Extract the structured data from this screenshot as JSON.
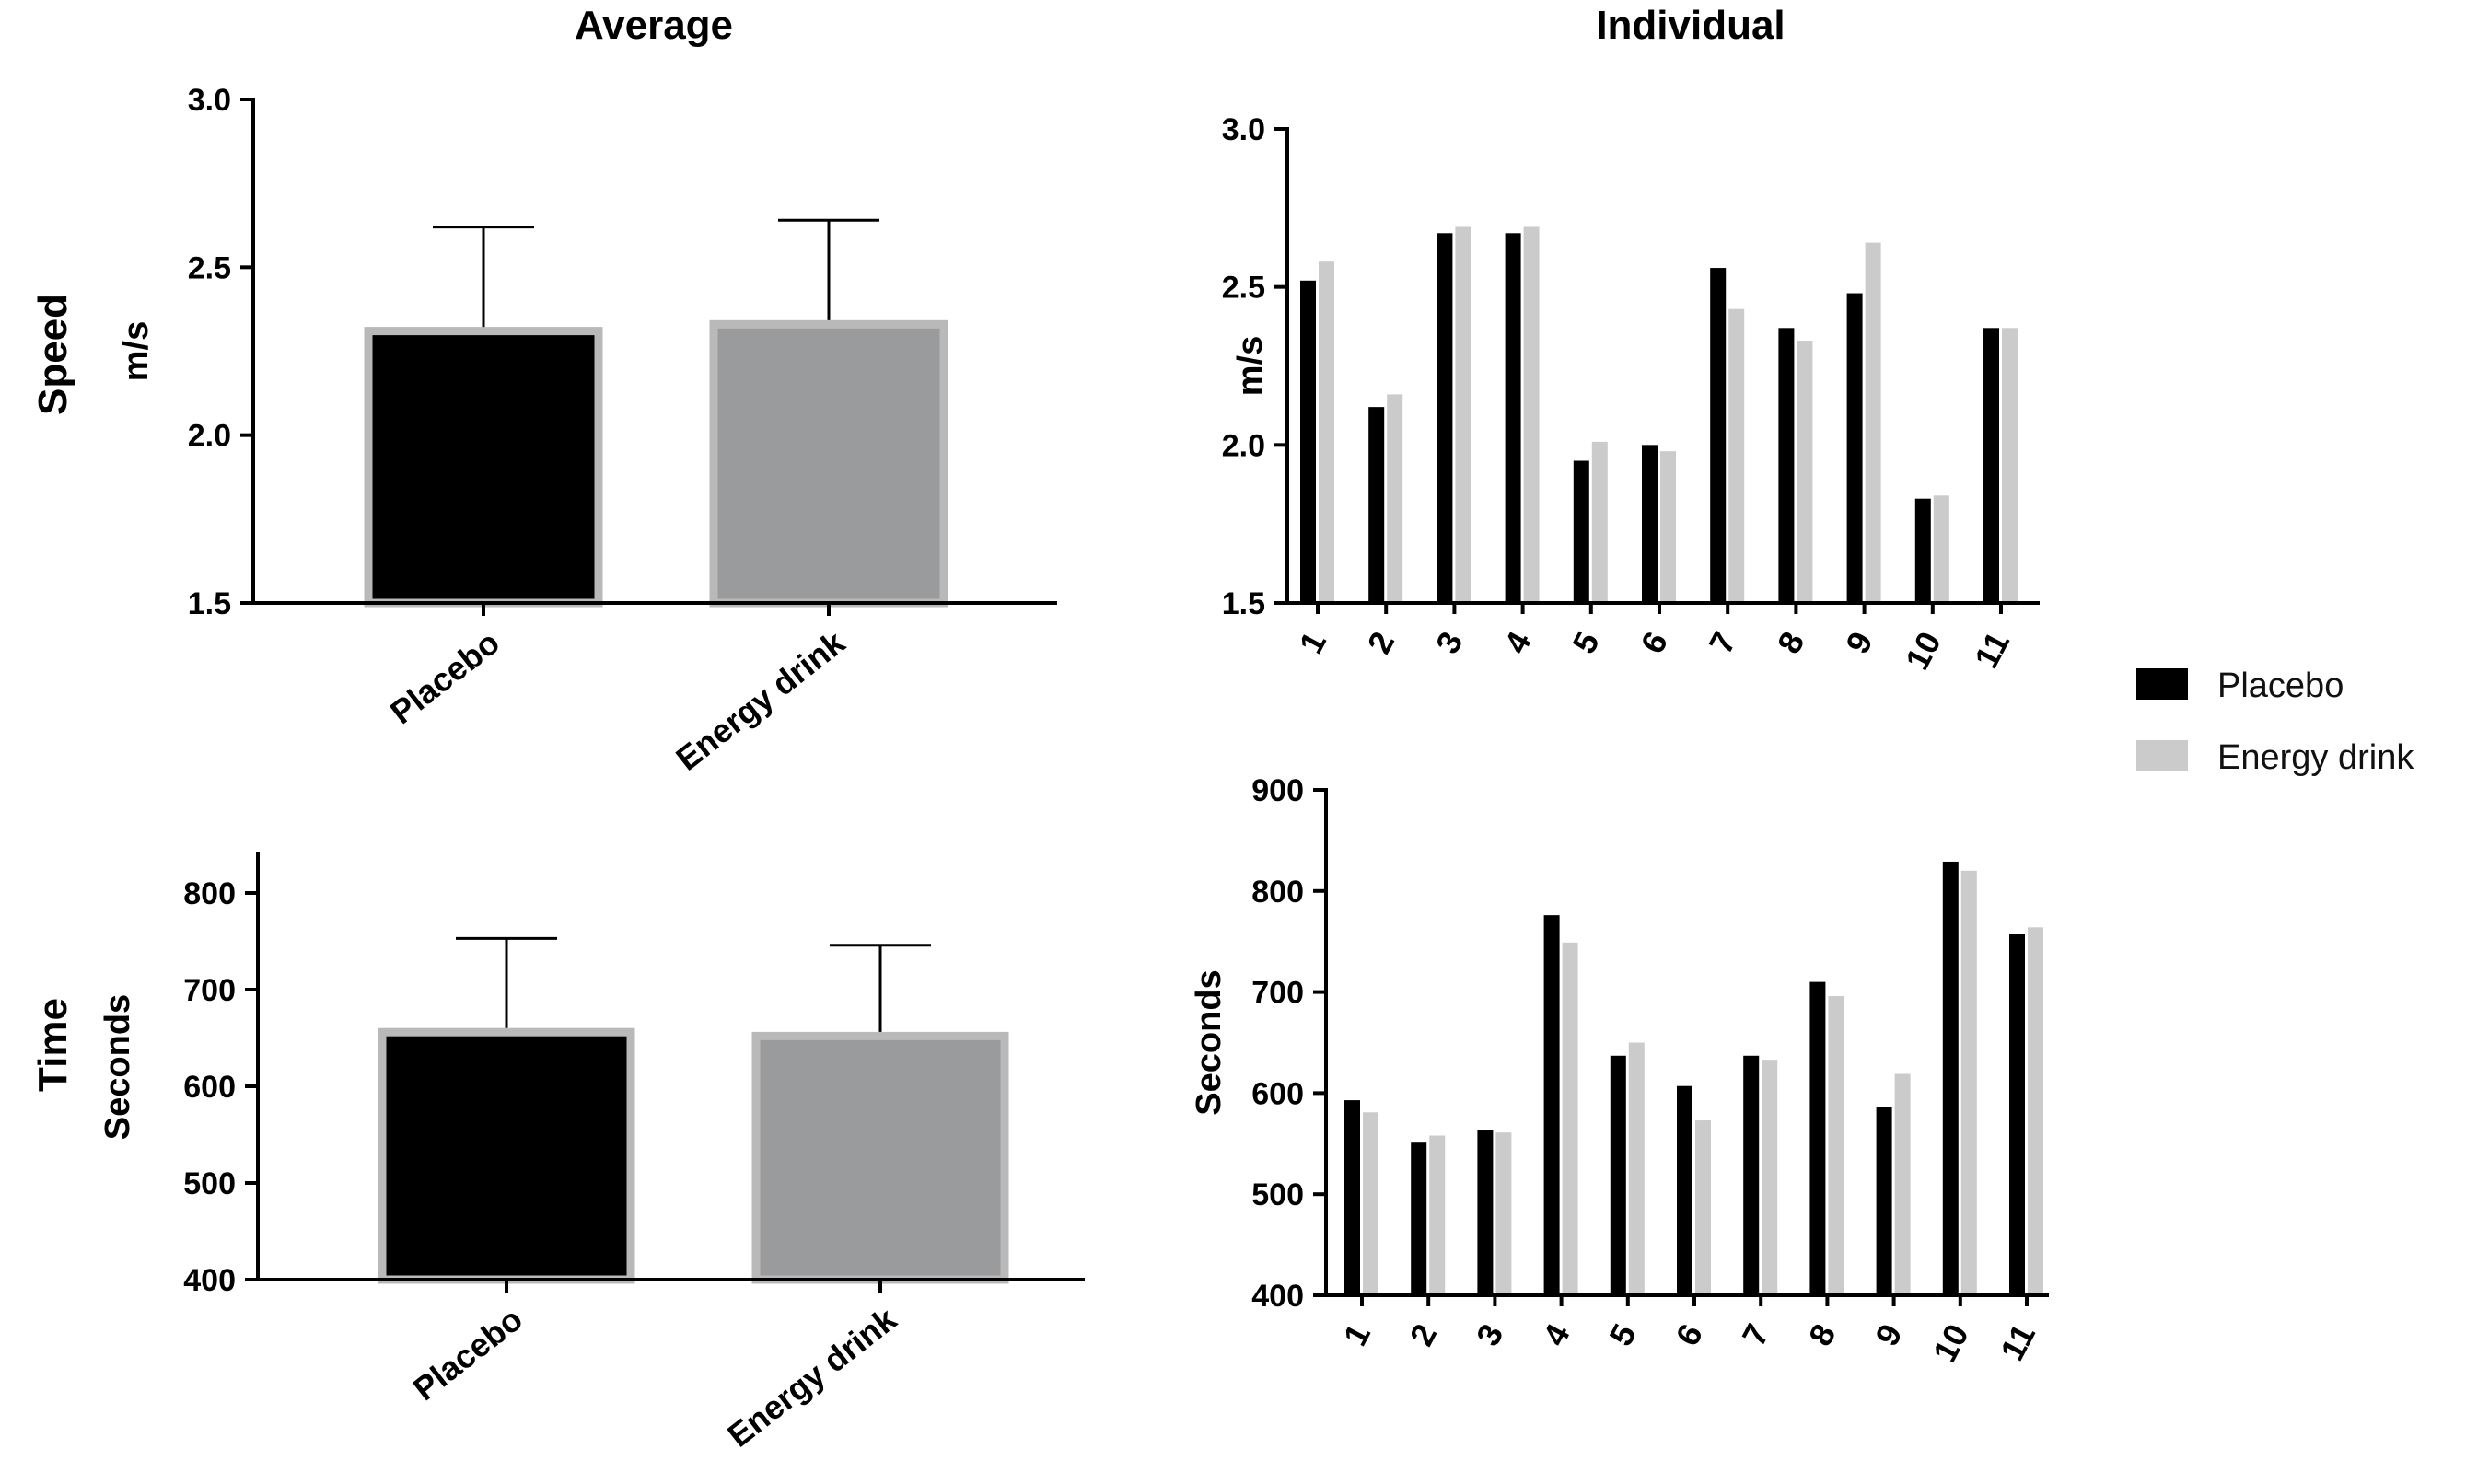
{
  "colors": {
    "placebo": "#000000",
    "energy_drink_avg": "#9a9b9d",
    "energy_drink_indiv": "#cbcbcb",
    "bar_outline": "#b9b9b9",
    "axis": "#000000"
  },
  "titles": {
    "average": "Average",
    "individual": "Individual"
  },
  "row_labels": {
    "speed": "Speed",
    "time": "Time"
  },
  "legend": {
    "placebo": "Placebo",
    "energy_drink": "Energy drink"
  },
  "chart_data": [
    {
      "id": "avg_speed",
      "type": "bar",
      "title": "Average",
      "row": "Speed",
      "categories": [
        "Placebo",
        "Energy drink"
      ],
      "values": [
        2.31,
        2.33
      ],
      "error_upper": [
        2.62,
        2.64
      ],
      "ylabel": "m/s",
      "ylim": [
        1.5,
        3.0
      ],
      "yticks": [
        1.5,
        2.0,
        2.5,
        3.0
      ],
      "ytick_labels": [
        "1.5",
        "2.0",
        "2.5",
        "3.0"
      ]
    },
    {
      "id": "avg_time",
      "type": "bar",
      "title": "Average",
      "row": "Time",
      "categories": [
        "Placebo",
        "Energy drink"
      ],
      "values": [
        656,
        652
      ],
      "error_upper": [
        753,
        746
      ],
      "ylabel": "Seconds",
      "ylim": [
        400,
        840
      ],
      "yticks": [
        400,
        500,
        600,
        700,
        800
      ],
      "ytick_labels": [
        "400",
        "500",
        "600",
        "700",
        "800"
      ]
    },
    {
      "id": "ind_speed",
      "type": "bar",
      "title": "Individual",
      "row": "Speed",
      "categories": [
        "1",
        "2",
        "3",
        "4",
        "5",
        "6",
        "7",
        "8",
        "9",
        "10",
        "11"
      ],
      "series": [
        {
          "name": "Placebo",
          "values": [
            2.52,
            2.12,
            2.67,
            2.67,
            1.95,
            2.0,
            2.56,
            2.37,
            2.48,
            1.83,
            2.37
          ]
        },
        {
          "name": "Energy drink",
          "values": [
            2.58,
            2.16,
            2.69,
            2.69,
            2.01,
            1.98,
            2.43,
            2.33,
            2.64,
            1.84,
            2.37
          ]
        }
      ],
      "ylabel": "m/s",
      "ylim": [
        1.5,
        3.0
      ],
      "yticks": [
        1.5,
        2.0,
        2.5,
        3.0
      ],
      "ytick_labels": [
        "1.5",
        "2.0",
        "2.5",
        "3.0"
      ]
    },
    {
      "id": "ind_time",
      "type": "bar",
      "title": "Individual",
      "row": "Time",
      "categories": [
        "1",
        "2",
        "3",
        "4",
        "5",
        "6",
        "7",
        "8",
        "9",
        "10",
        "11"
      ],
      "series": [
        {
          "name": "Placebo",
          "values": [
            593,
            551,
            563,
            776,
            637,
            607,
            637,
            710,
            586,
            829,
            757
          ]
        },
        {
          "name": "Energy drink",
          "values": [
            581,
            558,
            561,
            749,
            650,
            573,
            633,
            696,
            619,
            820,
            764
          ]
        }
      ],
      "ylabel": "Seconds",
      "ylim": [
        400,
        900
      ],
      "yticks": [
        400,
        500,
        600,
        700,
        800,
        900
      ],
      "ytick_labels": [
        "400",
        "500",
        "600",
        "700",
        "800",
        "900"
      ]
    }
  ]
}
